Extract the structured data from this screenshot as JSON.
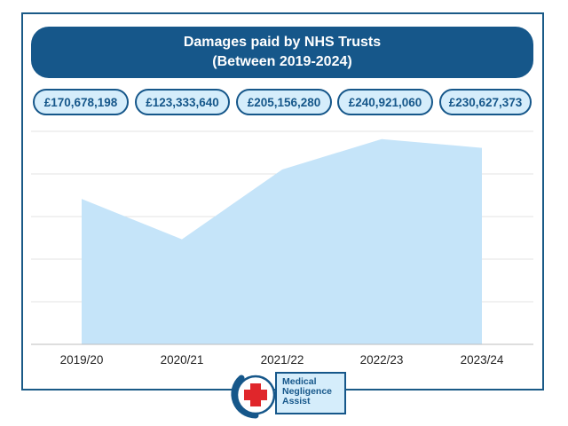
{
  "title": {
    "line1": "Damages paid by NHS Trusts",
    "line2": "(Between 2019-2024)"
  },
  "chart_data": {
    "type": "area",
    "categories": [
      "2019/20",
      "2020/21",
      "2021/22",
      "2022/23",
      "2023/24"
    ],
    "values": [
      170678198,
      123333640,
      205156280,
      240921060,
      230627373
    ],
    "value_labels": [
      "£170,678,198",
      "£123,333,640",
      "£205,156,280",
      "£240,921,060",
      "£230,627,373"
    ],
    "ylim": [
      0,
      250000000
    ],
    "grid": true,
    "fill_color": "#c5e4f9",
    "accent_color": "#16578a"
  },
  "logo": {
    "line1": "Medical",
    "line2": "Negligence",
    "line3": "Assist",
    "icon": "red-cross-phone-icon"
  }
}
